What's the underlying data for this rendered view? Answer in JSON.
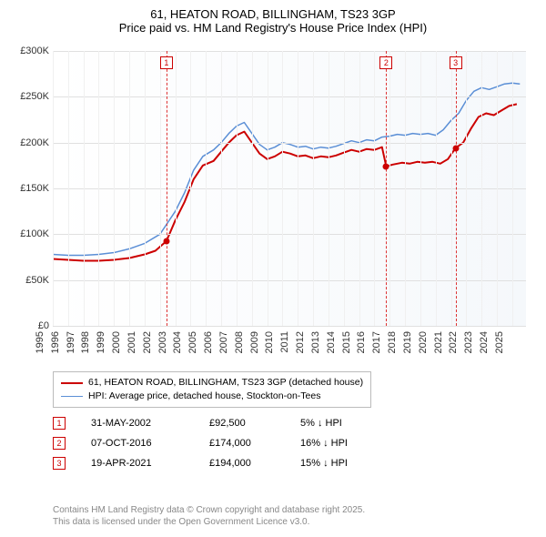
{
  "title": {
    "line1": "61, HEATON ROAD, BILLINGHAM, TS23 3GP",
    "line2": "Price paid vs. HM Land Registry's House Price Index (HPI)"
  },
  "chart": {
    "type": "line",
    "background_gradient": [
      "#ffffff",
      "#f5f8fb"
    ],
    "grid_color": "#e0e0e0",
    "xgrid_color": "#f0f0f0",
    "ylim": [
      0,
      300000
    ],
    "ytick_step": 50000,
    "ytick_labels": [
      "£0",
      "£50K",
      "£100K",
      "£150K",
      "£200K",
      "£250K",
      "£300K"
    ],
    "xlim": [
      1995,
      2025.9
    ],
    "xticks": [
      1995,
      1996,
      1997,
      1998,
      1999,
      2000,
      2001,
      2002,
      2003,
      2004,
      2005,
      2006,
      2007,
      2008,
      2009,
      2010,
      2011,
      2012,
      2013,
      2014,
      2015,
      2016,
      2017,
      2018,
      2019,
      2020,
      2021,
      2022,
      2023,
      2024,
      2025
    ],
    "marker_line_color": "#dd3333",
    "marker_box_border": "#cc0000",
    "marker_box_text": "#cc0000",
    "series": [
      {
        "name": "price-paid",
        "label": "61, HEATON ROAD, BILLINGHAM, TS23 3GP (detached house)",
        "color": "#cc0000",
        "width": 2,
        "points": [
          [
            1995.0,
            73000
          ],
          [
            1996.0,
            72000
          ],
          [
            1997.0,
            71000
          ],
          [
            1998.0,
            71000
          ],
          [
            1999.0,
            72000
          ],
          [
            2000.0,
            74000
          ],
          [
            2001.0,
            78000
          ],
          [
            2001.7,
            82000
          ],
          [
            2002.42,
            92500
          ],
          [
            2003.0,
            115000
          ],
          [
            2003.6,
            135000
          ],
          [
            2004.2,
            160000
          ],
          [
            2004.8,
            175000
          ],
          [
            2005.5,
            180000
          ],
          [
            2006.0,
            190000
          ],
          [
            2006.5,
            200000
          ],
          [
            2007.0,
            208000
          ],
          [
            2007.5,
            212000
          ],
          [
            2008.0,
            200000
          ],
          [
            2008.5,
            188000
          ],
          [
            2009.0,
            182000
          ],
          [
            2009.5,
            185000
          ],
          [
            2010.0,
            190000
          ],
          [
            2010.5,
            188000
          ],
          [
            2011.0,
            185000
          ],
          [
            2011.5,
            186000
          ],
          [
            2012.0,
            183000
          ],
          [
            2012.5,
            185000
          ],
          [
            2013.0,
            184000
          ],
          [
            2013.5,
            186000
          ],
          [
            2014.0,
            189000
          ],
          [
            2014.5,
            192000
          ],
          [
            2015.0,
            190000
          ],
          [
            2015.5,
            193000
          ],
          [
            2016.0,
            192000
          ],
          [
            2016.5,
            195000
          ],
          [
            2016.77,
            174000
          ],
          [
            2017.2,
            176000
          ],
          [
            2017.8,
            178000
          ],
          [
            2018.3,
            177000
          ],
          [
            2018.8,
            179000
          ],
          [
            2019.3,
            178000
          ],
          [
            2019.8,
            179000
          ],
          [
            2020.3,
            177000
          ],
          [
            2020.8,
            182000
          ],
          [
            2021.3,
            194000
          ],
          [
            2021.8,
            200000
          ],
          [
            2022.3,
            215000
          ],
          [
            2022.8,
            228000
          ],
          [
            2023.3,
            232000
          ],
          [
            2023.8,
            230000
          ],
          [
            2024.3,
            235000
          ],
          [
            2024.8,
            240000
          ],
          [
            2025.3,
            242000
          ]
        ]
      },
      {
        "name": "hpi",
        "label": "HPI: Average price, detached house, Stockton-on-Tees",
        "color": "#5b8fd6",
        "width": 1.5,
        "points": [
          [
            1995.0,
            78000
          ],
          [
            1996.0,
            77000
          ],
          [
            1997.0,
            77000
          ],
          [
            1998.0,
            78000
          ],
          [
            1999.0,
            80000
          ],
          [
            2000.0,
            84000
          ],
          [
            2001.0,
            90000
          ],
          [
            2002.0,
            100000
          ],
          [
            2003.0,
            125000
          ],
          [
            2003.6,
            145000
          ],
          [
            2004.2,
            170000
          ],
          [
            2004.8,
            185000
          ],
          [
            2005.5,
            192000
          ],
          [
            2006.0,
            200000
          ],
          [
            2006.5,
            210000
          ],
          [
            2007.0,
            218000
          ],
          [
            2007.5,
            222000
          ],
          [
            2008.0,
            210000
          ],
          [
            2008.5,
            198000
          ],
          [
            2009.0,
            192000
          ],
          [
            2009.5,
            195000
          ],
          [
            2010.0,
            200000
          ],
          [
            2010.5,
            198000
          ],
          [
            2011.0,
            195000
          ],
          [
            2011.5,
            196000
          ],
          [
            2012.0,
            193000
          ],
          [
            2012.5,
            195000
          ],
          [
            2013.0,
            194000
          ],
          [
            2013.5,
            196000
          ],
          [
            2014.0,
            199000
          ],
          [
            2014.5,
            202000
          ],
          [
            2015.0,
            200000
          ],
          [
            2015.5,
            203000
          ],
          [
            2016.0,
            202000
          ],
          [
            2016.5,
            206000
          ],
          [
            2017.0,
            207000
          ],
          [
            2017.5,
            209000
          ],
          [
            2018.0,
            208000
          ],
          [
            2018.5,
            210000
          ],
          [
            2019.0,
            209000
          ],
          [
            2019.5,
            210000
          ],
          [
            2020.0,
            208000
          ],
          [
            2020.5,
            214000
          ],
          [
            2021.0,
            224000
          ],
          [
            2021.5,
            232000
          ],
          [
            2022.0,
            246000
          ],
          [
            2022.5,
            256000
          ],
          [
            2023.0,
            260000
          ],
          [
            2023.5,
            258000
          ],
          [
            2024.0,
            261000
          ],
          [
            2024.5,
            264000
          ],
          [
            2025.0,
            265000
          ],
          [
            2025.5,
            264000
          ]
        ]
      }
    ],
    "sale_markers": [
      {
        "n": "1",
        "x": 2002.42,
        "y": 92500,
        "color": "#cc0000"
      },
      {
        "n": "2",
        "x": 2016.77,
        "y": 174000,
        "color": "#cc0000"
      },
      {
        "n": "3",
        "x": 2021.3,
        "y": 194000,
        "color": "#cc0000"
      }
    ]
  },
  "sales": [
    {
      "n": "1",
      "date": "31-MAY-2002",
      "price": "£92,500",
      "delta": "5% ↓ HPI"
    },
    {
      "n": "2",
      "date": "07-OCT-2016",
      "price": "£174,000",
      "delta": "16% ↓ HPI"
    },
    {
      "n": "3",
      "date": "19-APR-2021",
      "price": "£194,000",
      "delta": "15% ↓ HPI"
    }
  ],
  "footer": {
    "line1": "Contains HM Land Registry data © Crown copyright and database right 2025.",
    "line2": "This data is licensed under the Open Government Licence v3.0."
  }
}
